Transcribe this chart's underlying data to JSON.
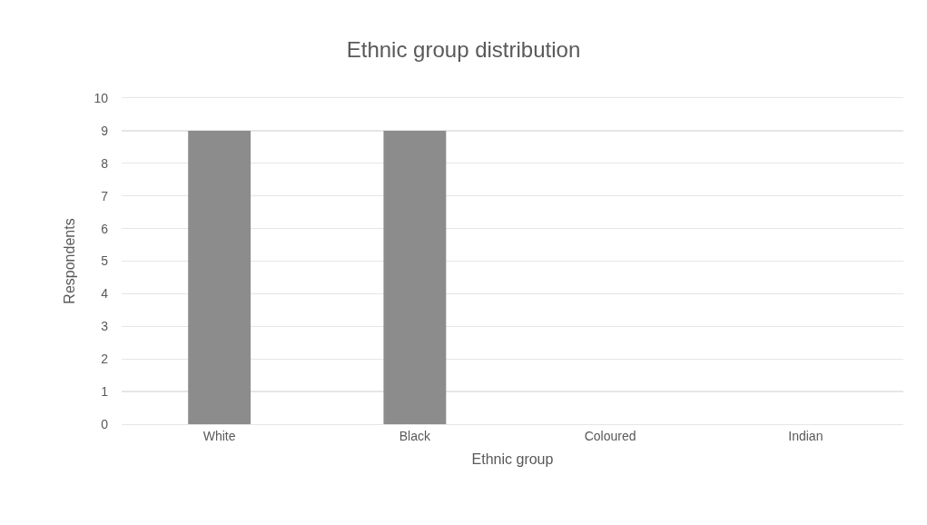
{
  "chart_data": {
    "type": "bar",
    "title": "Ethnic group distribution",
    "xlabel": "Ethnic group",
    "ylabel": "Respondents",
    "categories": [
      "White",
      "Black",
      "Coloured",
      "Indian"
    ],
    "values": [
      9,
      9,
      0,
      0
    ],
    "color": "#8c8c8c",
    "ylim": [
      0,
      10
    ],
    "yticks": [
      0,
      1,
      2,
      3,
      4,
      5,
      6,
      7,
      8,
      9,
      10
    ],
    "grid": "y"
  }
}
